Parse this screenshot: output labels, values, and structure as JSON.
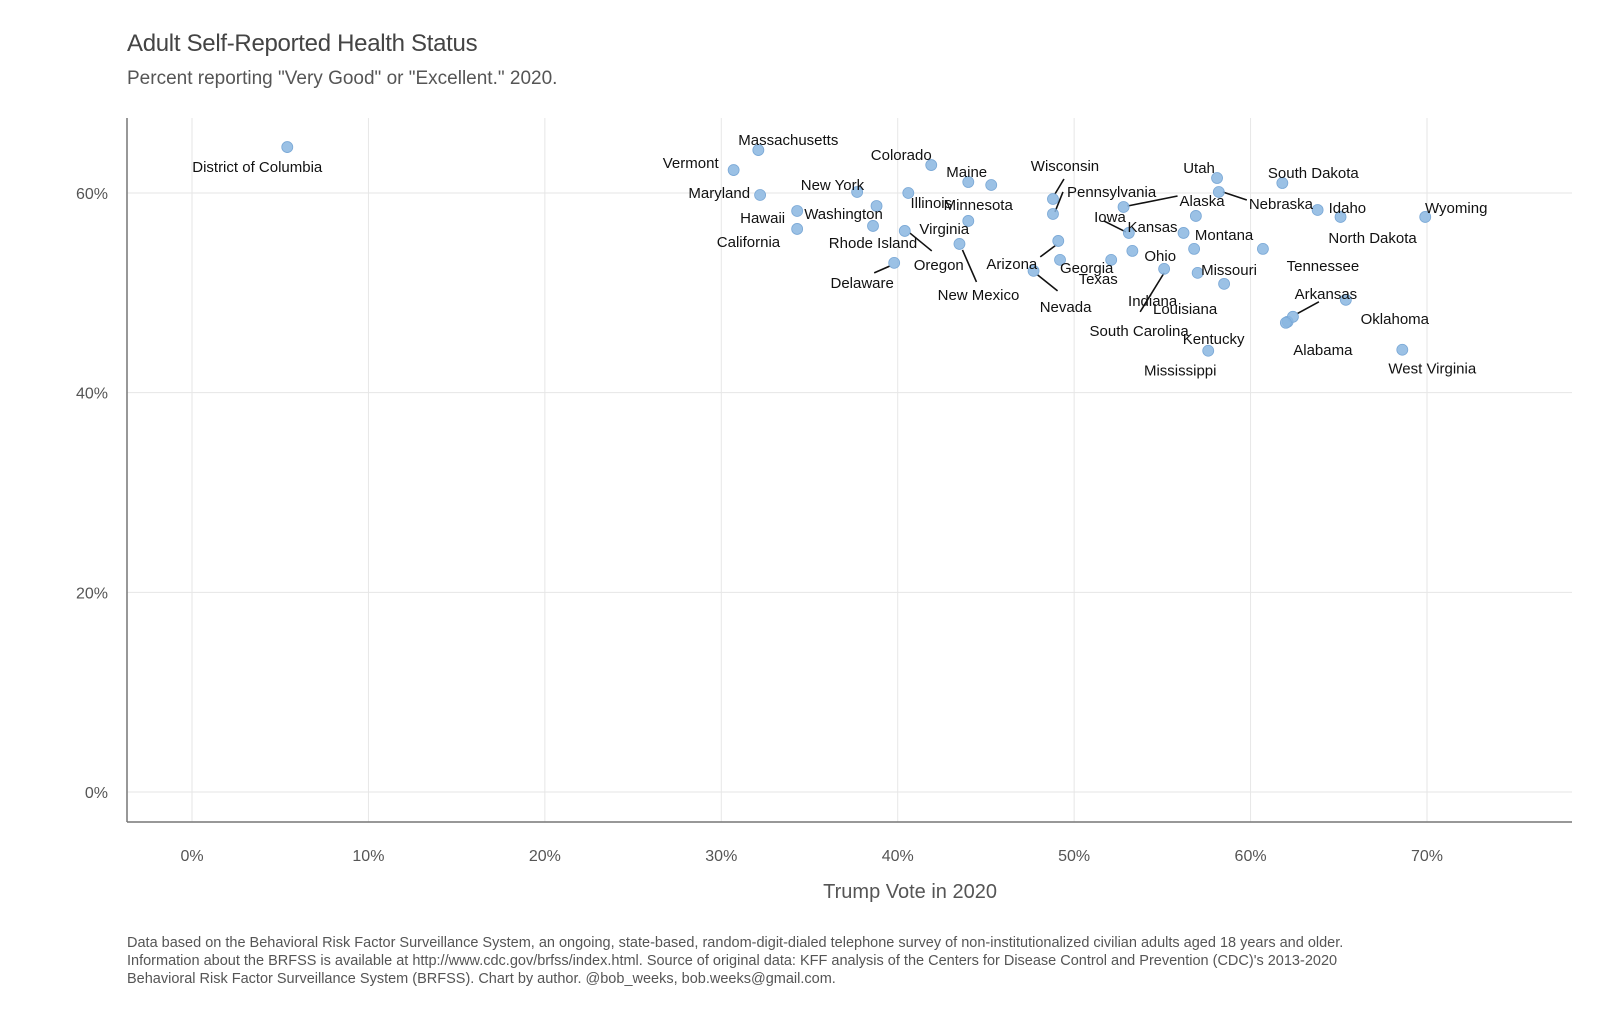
{
  "chart_data": {
    "type": "scatter",
    "title": "Adult Self-Reported Health Status",
    "subtitle": "Percent reporting \"Very Good\" or \"Excellent.\" 2020.",
    "xlabel": "Trump Vote in 2020",
    "ylabel": "",
    "xlim": [
      -3.7,
      78
    ],
    "ylim": [
      -3,
      67
    ],
    "x_ticks": [
      0,
      10,
      20,
      30,
      40,
      50,
      60,
      70
    ],
    "x_tick_labels": [
      "0%",
      "10%",
      "20%",
      "30%",
      "40%",
      "50%",
      "60%",
      "70%"
    ],
    "y_ticks": [
      0,
      20,
      40,
      60
    ],
    "y_tick_labels": [
      "0%",
      "20%",
      "40%",
      "60%"
    ],
    "grid": true,
    "point_color": "#8ab6e0",
    "caption": [
      "Data based on the Behavioral Risk Factor Surveillance System, an ongoing, state-based, random-digit-dialed telephone survey of non-institutionalized civilian adults aged 18 years and older.",
      "Information about the BRFSS is available at http://www.cdc.gov/brfss/index.html. Source of original data: KFF analysis of the Centers for Disease Control and Prevention (CDC)'s 2013-2020",
      "Behavioral Risk Factor Surveillance System (BRFSS). Chart by author. @bob_weeks, bob.weeks@gmail.com."
    ],
    "points": [
      {
        "label": "District of Columbia",
        "x": 5.4,
        "y": 64.6
      },
      {
        "label": "Massachusetts",
        "x": 32.1,
        "y": 64.3
      },
      {
        "label": "Vermont",
        "x": 30.7,
        "y": 62.3
      },
      {
        "label": "Maryland",
        "x": 32.2,
        "y": 59.8
      },
      {
        "label": "Hawaii",
        "x": 34.3,
        "y": 58.2
      },
      {
        "label": "California",
        "x": 34.3,
        "y": 56.4
      },
      {
        "label": "New York",
        "x": 37.7,
        "y": 60.1
      },
      {
        "label": "Washington",
        "x": 38.8,
        "y": 58.7
      },
      {
        "label": "Rhode Island",
        "x": 38.6,
        "y": 56.7
      },
      {
        "label": "Delaware",
        "x": 39.8,
        "y": 53.0
      },
      {
        "label": "Colorado",
        "x": 41.9,
        "y": 62.8
      },
      {
        "label": "Illinois",
        "x": 40.6,
        "y": 60.0
      },
      {
        "label": "Oregon",
        "x": 40.4,
        "y": 56.2
      },
      {
        "label": "New Mexico",
        "x": 43.5,
        "y": 54.9
      },
      {
        "label": "Maine",
        "x": 44.0,
        "y": 61.1
      },
      {
        "label": "Minnesota",
        "x": 45.3,
        "y": 60.8
      },
      {
        "label": "Virginia",
        "x": 44.0,
        "y": 57.2
      },
      {
        "label": "Arizona",
        "x": 49.1,
        "y": 55.2
      },
      {
        "label": "Nevada",
        "x": 47.7,
        "y": 52.2
      },
      {
        "label": "Georgia",
        "x": 49.2,
        "y": 53.3
      },
      {
        "label": "Wisconsin",
        "x": 48.8,
        "y": 59.4
      },
      {
        "label": "Pennsylvania",
        "x": 48.8,
        "y": 57.9
      },
      {
        "label": "Iowa",
        "x": 53.1,
        "y": 56.0
      },
      {
        "label": "Texas",
        "x": 52.1,
        "y": 53.3
      },
      {
        "label": "Ohio",
        "x": 53.3,
        "y": 54.2
      },
      {
        "label": "Alaska",
        "x": 52.8,
        "y": 58.6
      },
      {
        "label": "Kansas",
        "x": 56.2,
        "y": 56.0
      },
      {
        "label": "South Carolina",
        "x": 55.1,
        "y": 52.4
      },
      {
        "label": "Indiana",
        "x": 57.0,
        "y": 52.0
      },
      {
        "label": "Montana",
        "x": 56.9,
        "y": 57.7
      },
      {
        "label": "Missouri",
        "x": 56.8,
        "y": 54.4
      },
      {
        "label": "Louisiana",
        "x": 58.5,
        "y": 50.9
      },
      {
        "label": "Mississippi",
        "x": 57.6,
        "y": 44.2
      },
      {
        "label": "Kentucky",
        "x": 62.1,
        "y": 47.1
      },
      {
        "label": "Utah",
        "x": 58.1,
        "y": 61.5
      },
      {
        "label": "Nebraska",
        "x": 58.2,
        "y": 60.1
      },
      {
        "label": "South Dakota",
        "x": 61.8,
        "y": 61.0
      },
      {
        "label": "Idaho",
        "x": 63.8,
        "y": 58.3
      },
      {
        "label": "North Dakota",
        "x": 65.1,
        "y": 57.6
      },
      {
        "label": "Wyoming",
        "x": 69.9,
        "y": 57.6
      },
      {
        "label": "Tennessee",
        "x": 60.7,
        "y": 54.4
      },
      {
        "label": "Arkansas",
        "x": 62.4,
        "y": 47.6
      },
      {
        "label": "Alabama",
        "x": 62.0,
        "y": 47.0
      },
      {
        "label": "Oklahoma",
        "x": 65.4,
        "y": 49.3
      },
      {
        "label": "West Virginia",
        "x": 68.6,
        "y": 44.3
      }
    ]
  }
}
